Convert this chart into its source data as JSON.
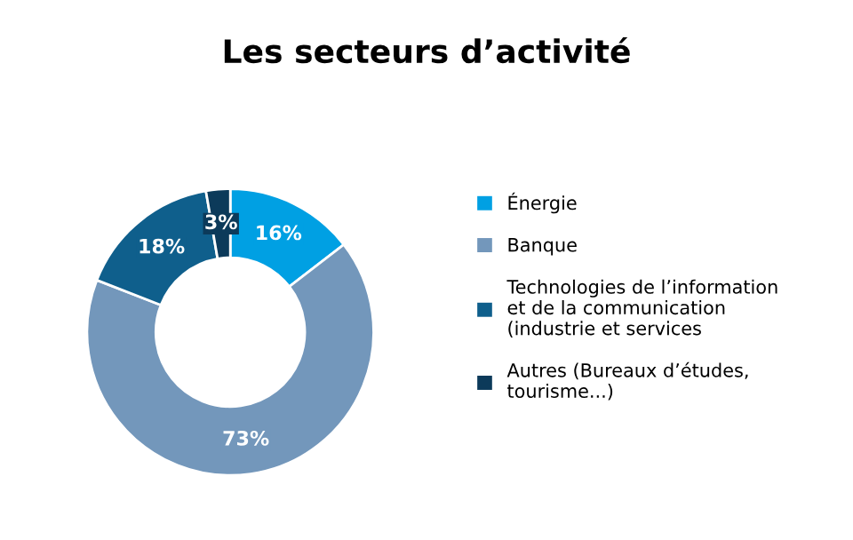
{
  "chart_data": {
    "type": "donut",
    "title": "Les secteurs d’activité",
    "categories": [
      "Énergie",
      "Banque",
      "Technologies de l’information et de la communication (industrie et services",
      "Autres (Bureaux d’études, tourisme...)"
    ],
    "values": [
      16,
      73,
      18,
      3
    ],
    "colors": [
      "#00a0e3",
      "#7397bb",
      "#0f5f8c",
      "#0c3a5a"
    ],
    "value_labels": [
      "16%",
      "73%",
      "18%",
      "3%"
    ],
    "legend": "right"
  }
}
